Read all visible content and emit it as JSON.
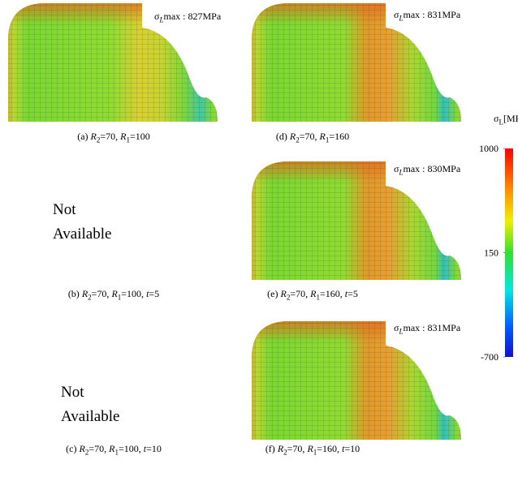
{
  "panels": [
    {
      "available": true,
      "max": [
        {
          "text": "σ"
        },
        {
          "text": "L",
          "style": "isub"
        },
        {
          "text": "max : 827MPa"
        }
      ],
      "caption": [
        {
          "text": "(a) "
        },
        {
          "text": "R",
          "style": "i"
        },
        {
          "text": "2",
          "style": "sub"
        },
        {
          "text": "=70, "
        },
        {
          "text": "R",
          "style": "i"
        },
        {
          "text": "1",
          "style": "sub"
        },
        {
          "text": "=100"
        }
      ]
    },
    {
      "available": false,
      "placeholder": [
        "Not",
        "Available"
      ],
      "caption": [
        {
          "text": "(b) "
        },
        {
          "text": "R",
          "style": "i"
        },
        {
          "text": "2",
          "style": "sub"
        },
        {
          "text": "=70, "
        },
        {
          "text": "R",
          "style": "i"
        },
        {
          "text": "1",
          "style": "sub"
        },
        {
          "text": "=100, "
        },
        {
          "text": "t",
          "style": "i"
        },
        {
          "text": "=5"
        }
      ]
    },
    {
      "available": false,
      "placeholder": [
        "Not",
        "Available"
      ],
      "caption": [
        {
          "text": "(c) "
        },
        {
          "text": "R",
          "style": "i"
        },
        {
          "text": "2",
          "style": "sub"
        },
        {
          "text": "=70, "
        },
        {
          "text": "R",
          "style": "i"
        },
        {
          "text": "1",
          "style": "sub"
        },
        {
          "text": "=100, "
        },
        {
          "text": "t",
          "style": "i"
        },
        {
          "text": "=10"
        }
      ]
    },
    {
      "available": true,
      "max": [
        {
          "text": "σ"
        },
        {
          "text": "L",
          "style": "isub"
        },
        {
          "text": "max : 831MPa"
        }
      ],
      "caption": [
        {
          "text": "(d) "
        },
        {
          "text": "R",
          "style": "i"
        },
        {
          "text": "2",
          "style": "sub"
        },
        {
          "text": "=70, "
        },
        {
          "text": "R",
          "style": "i"
        },
        {
          "text": "1",
          "style": "sub"
        },
        {
          "text": "=160"
        }
      ]
    },
    {
      "available": true,
      "max": [
        {
          "text": "σ"
        },
        {
          "text": "L",
          "style": "isub"
        },
        {
          "text": "max : 830MPa"
        }
      ],
      "caption": [
        {
          "text": "(e) "
        },
        {
          "text": "R",
          "style": "i"
        },
        {
          "text": "2",
          "style": "sub"
        },
        {
          "text": "=70, "
        },
        {
          "text": "R",
          "style": "i"
        },
        {
          "text": "1",
          "style": "sub"
        },
        {
          "text": "=160, "
        },
        {
          "text": "t",
          "style": "i"
        },
        {
          "text": "=5"
        }
      ]
    },
    {
      "available": true,
      "max": [
        {
          "text": "σ"
        },
        {
          "text": "L",
          "style": "isub"
        },
        {
          "text": "max : 831MPa"
        }
      ],
      "caption": [
        {
          "text": "(f) "
        },
        {
          "text": "R",
          "style": "i"
        },
        {
          "text": "2",
          "style": "sub"
        },
        {
          "text": "=70, "
        },
        {
          "text": "R",
          "style": "i"
        },
        {
          "text": "1",
          "style": "sub"
        },
        {
          "text": "=160, "
        },
        {
          "text": "t",
          "style": "i"
        },
        {
          "text": "=10"
        }
      ]
    }
  ],
  "colorbar": {
    "label": [
      {
        "text": "σ"
      },
      {
        "text": "L",
        "style": "sub"
      },
      {
        "text": "[MPa]"
      }
    ],
    "lim": [
      -700,
      1000
    ],
    "ticks": [
      1000,
      150,
      -700
    ]
  }
}
